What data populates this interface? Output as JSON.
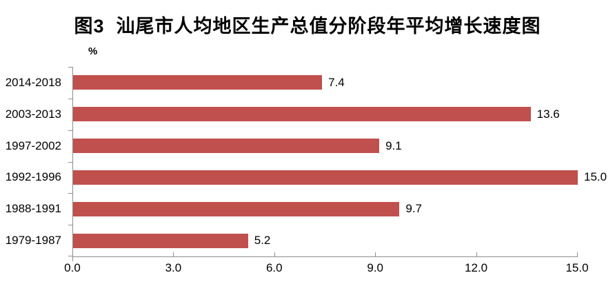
{
  "title": "图3  汕尾市人均地区生产总值分阶段年平均增长速度图",
  "chart_data": {
    "type": "bar",
    "orientation": "horizontal",
    "title": "图3  汕尾市人均地区生产总值分阶段年平均增长速度图",
    "unit_label": "%",
    "categories": [
      "2014-2018",
      "2003-2013",
      "1997-2002",
      "1992-1996",
      "1988-1991",
      "1979-1987"
    ],
    "values": [
      7.4,
      13.6,
      9.1,
      15.0,
      9.7,
      5.2
    ],
    "value_labels": [
      "7.4",
      "13.6",
      "9.1",
      "15.0",
      "9.7",
      "5.2"
    ],
    "x_ticks": [
      "0.0",
      "3.0",
      "6.0",
      "9.0",
      "12.0",
      "15.0"
    ],
    "xlim": [
      0,
      15
    ],
    "bar_color": "#C0504D",
    "axis_color": "#8C8C8C",
    "grid": false,
    "legend": false
  }
}
